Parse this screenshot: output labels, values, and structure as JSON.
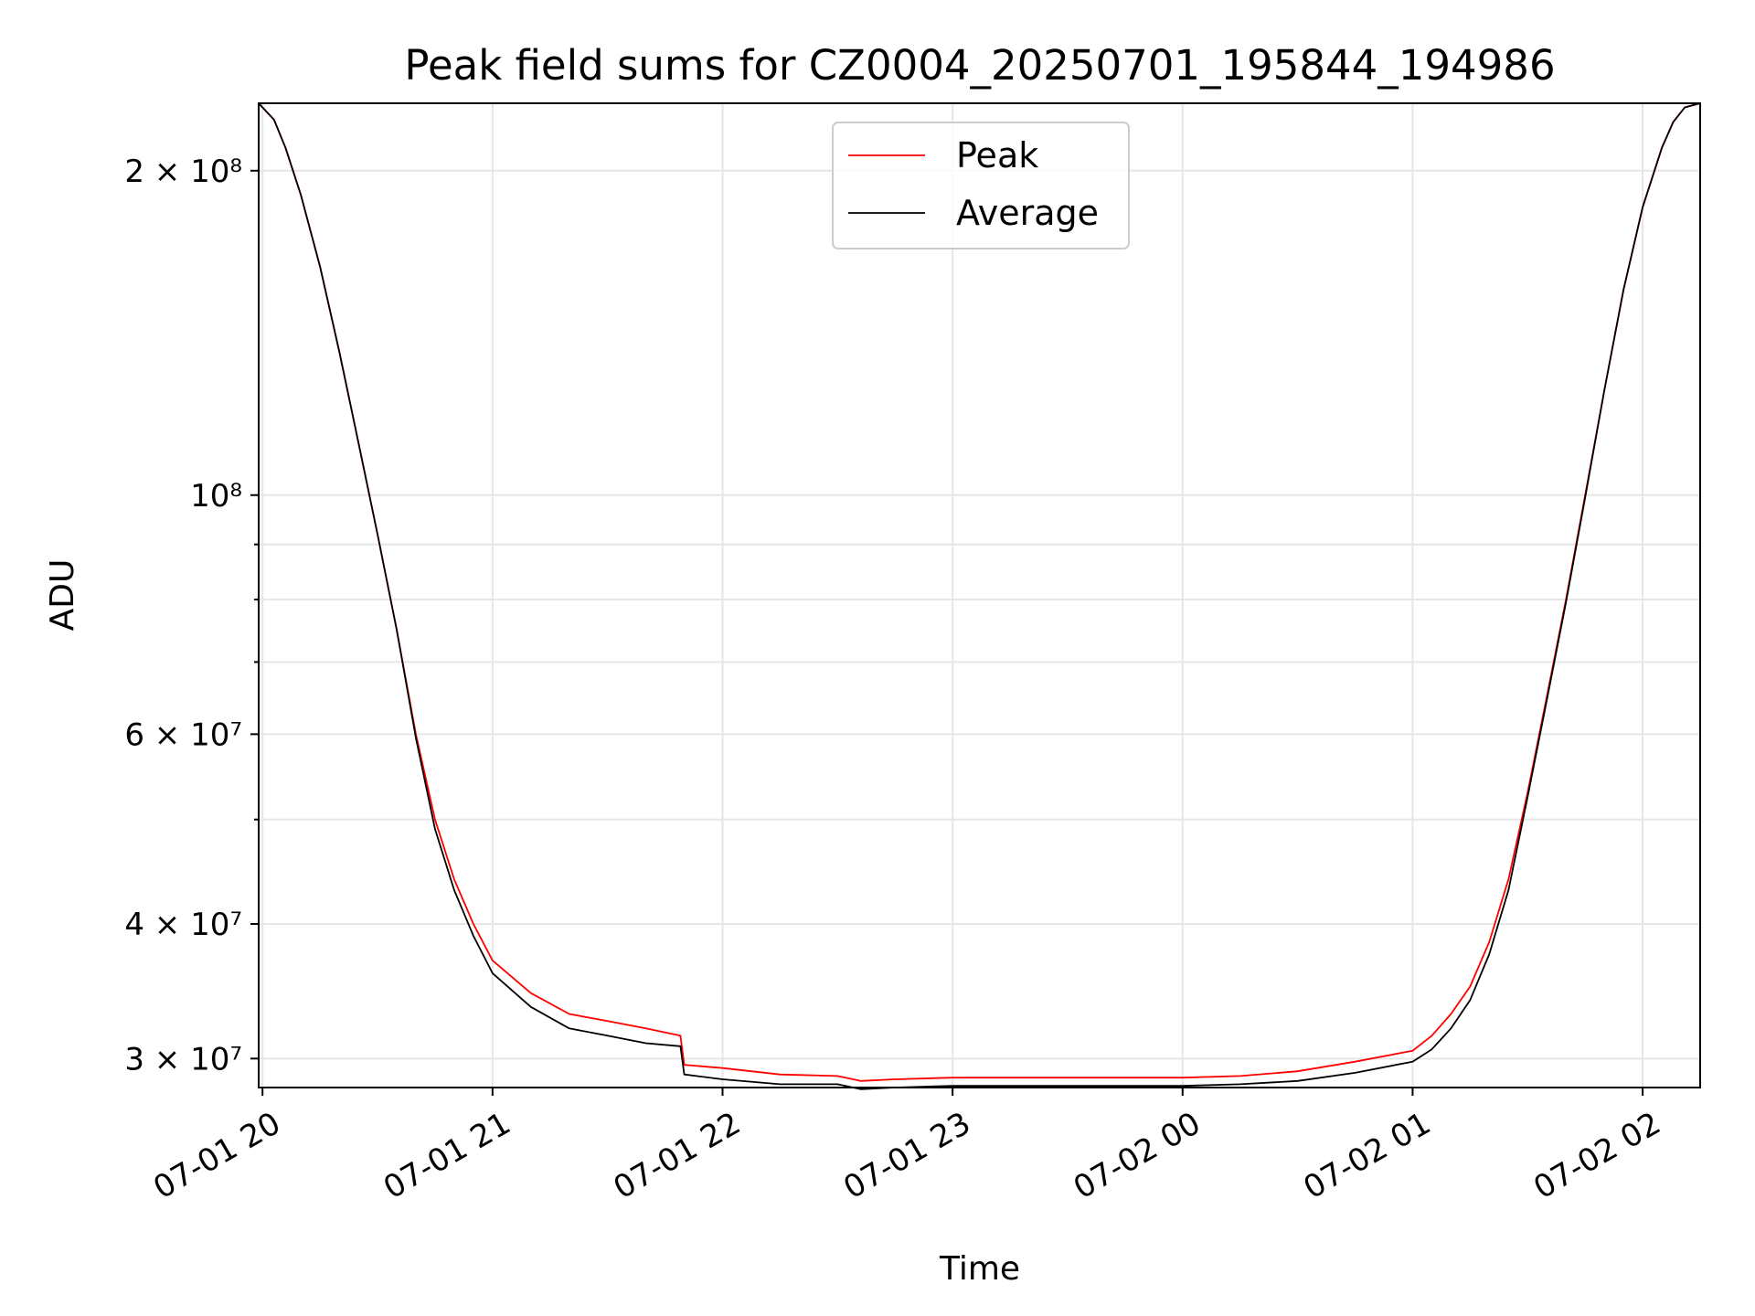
{
  "chart_data": {
    "type": "line",
    "title": "Peak field sums for CZ0004_20250701_195844_194986",
    "xlabel": "Time",
    "ylabel": "ADU",
    "yscale": "log",
    "xlim": [
      "2025-07-01 19:59",
      "2025-07-02 02:15"
    ],
    "ylim": [
      28200000,
      231000000
    ],
    "grid": true,
    "legend": {
      "position": "top-center",
      "entries": [
        "Peak",
        "Average"
      ]
    },
    "x_ticks": [
      "07-01 20",
      "07-01 21",
      "07-01 22",
      "07-01 23",
      "07-02 00",
      "07-02 01",
      "07-02 02"
    ],
    "x_tick_values": [
      "2025-07-01 20:00",
      "2025-07-01 21:00",
      "2025-07-01 22:00",
      "2025-07-01 23:00",
      "2025-07-02 00:00",
      "2025-07-02 01:00",
      "2025-07-02 02:00"
    ],
    "y_major_ticks": [
      {
        "value": 30000000,
        "label": "3 × 10⁷"
      },
      {
        "value": 40000000,
        "label": "4 × 10⁷"
      },
      {
        "value": 60000000,
        "label": "6 × 10⁷"
      },
      {
        "value": 100000000,
        "label": "10⁸"
      },
      {
        "value": 200000000,
        "label": "2 × 10⁸"
      }
    ],
    "y_minor_ticks": [
      50000000,
      70000000,
      80000000,
      90000000
    ],
    "series": [
      {
        "name": "Peak",
        "color": "#ff0000",
        "x": [
          "2025-07-01 19:59",
          "2025-07-01 20:03",
          "2025-07-01 20:06",
          "2025-07-01 20:10",
          "2025-07-01 20:15",
          "2025-07-01 20:20",
          "2025-07-01 20:25",
          "2025-07-01 20:30",
          "2025-07-01 20:35",
          "2025-07-01 20:40",
          "2025-07-01 20:45",
          "2025-07-01 20:50",
          "2025-07-01 20:55",
          "2025-07-01 21:00",
          "2025-07-01 21:10",
          "2025-07-01 21:20",
          "2025-07-01 21:30",
          "2025-07-01 21:40",
          "2025-07-01 21:49",
          "2025-07-01 21:50",
          "2025-07-01 22:00",
          "2025-07-01 22:15",
          "2025-07-01 22:30",
          "2025-07-01 22:36",
          "2025-07-01 22:45",
          "2025-07-01 23:00",
          "2025-07-01 23:30",
          "2025-07-02 00:00",
          "2025-07-02 00:15",
          "2025-07-02 00:30",
          "2025-07-02 00:45",
          "2025-07-02 01:00",
          "2025-07-02 01:05",
          "2025-07-02 01:10",
          "2025-07-02 01:15",
          "2025-07-02 01:20",
          "2025-07-02 01:25",
          "2025-07-02 01:30",
          "2025-07-02 01:35",
          "2025-07-02 01:40",
          "2025-07-02 01:45",
          "2025-07-02 01:50",
          "2025-07-02 01:55",
          "2025-07-02 02:00",
          "2025-07-02 02:05",
          "2025-07-02 02:08",
          "2025-07-02 02:11",
          "2025-07-02 02:15"
        ],
        "values": [
          231000000,
          223000000,
          210000000,
          190000000,
          163000000,
          136000000,
          112000000,
          92000000,
          75000000,
          60000000,
          50000000,
          44000000,
          40000000,
          37000000,
          34500000,
          33000000,
          32500000,
          32000000,
          31500000,
          29600000,
          29400000,
          29000000,
          28900000,
          28600000,
          28700000,
          28800000,
          28800000,
          28800000,
          28900000,
          29200000,
          29800000,
          30500000,
          31500000,
          33000000,
          35000000,
          38500000,
          44000000,
          53000000,
          65000000,
          80000000,
          100000000,
          125000000,
          155000000,
          185000000,
          210000000,
          222000000,
          229000000,
          231000000
        ]
      },
      {
        "name": "Average",
        "color": "#000000",
        "x": [
          "2025-07-01 19:59",
          "2025-07-01 20:03",
          "2025-07-01 20:06",
          "2025-07-01 20:10",
          "2025-07-01 20:15",
          "2025-07-01 20:20",
          "2025-07-01 20:25",
          "2025-07-01 20:30",
          "2025-07-01 20:35",
          "2025-07-01 20:40",
          "2025-07-01 20:45",
          "2025-07-01 20:50",
          "2025-07-01 20:55",
          "2025-07-01 21:00",
          "2025-07-01 21:10",
          "2025-07-01 21:20",
          "2025-07-01 21:30",
          "2025-07-01 21:40",
          "2025-07-01 21:49",
          "2025-07-01 21:50",
          "2025-07-01 22:00",
          "2025-07-01 22:15",
          "2025-07-01 22:30",
          "2025-07-01 22:36",
          "2025-07-01 22:45",
          "2025-07-01 23:00",
          "2025-07-01 23:30",
          "2025-07-02 00:00",
          "2025-07-02 00:15",
          "2025-07-02 00:30",
          "2025-07-02 00:45",
          "2025-07-02 01:00",
          "2025-07-02 01:05",
          "2025-07-02 01:10",
          "2025-07-02 01:15",
          "2025-07-02 01:20",
          "2025-07-02 01:25",
          "2025-07-02 01:30",
          "2025-07-02 01:35",
          "2025-07-02 01:40",
          "2025-07-02 01:45",
          "2025-07-02 01:50",
          "2025-07-02 01:55",
          "2025-07-02 02:00",
          "2025-07-02 02:05",
          "2025-07-02 02:08",
          "2025-07-02 02:11",
          "2025-07-02 02:15"
        ],
        "values": [
          231000000,
          223000000,
          210000000,
          190000000,
          163000000,
          136000000,
          112000000,
          92000000,
          75000000,
          59500000,
          49000000,
          43000000,
          39000000,
          36000000,
          33500000,
          32000000,
          31500000,
          31000000,
          30800000,
          29000000,
          28700000,
          28400000,
          28400000,
          28100000,
          28200000,
          28300000,
          28300000,
          28300000,
          28400000,
          28600000,
          29100000,
          29800000,
          30600000,
          32000000,
          34000000,
          37500000,
          43000000,
          52500000,
          64500000,
          79500000,
          99500000,
          125000000,
          155000000,
          185000000,
          210000000,
          222000000,
          229000000,
          231000000
        ]
      }
    ]
  }
}
